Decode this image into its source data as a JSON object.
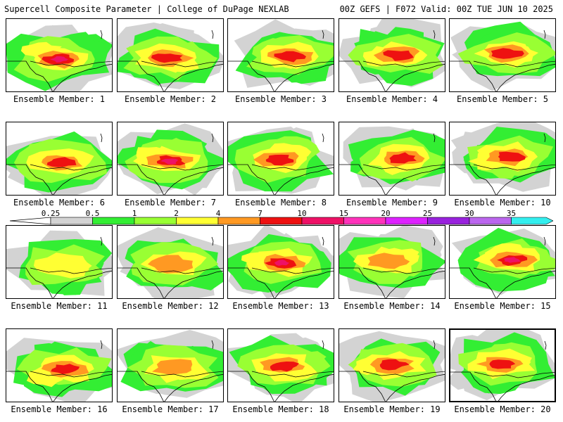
{
  "header": {
    "title": "Supercell Composite Parameter | College of DuPage NEXLAB",
    "valid": "00Z GEFS | F072 Valid: 00Z TUE JUN 10 2025"
  },
  "colorbar": {
    "ticks": [
      "0.25",
      "0.5",
      "1",
      "2",
      "4",
      "7",
      "10",
      "15",
      "20",
      "25",
      "30",
      "35"
    ],
    "colors": [
      "#d3d3d3",
      "#33ee33",
      "#99ff33",
      "#ffff33",
      "#ff9922",
      "#ee1111",
      "#ee1166",
      "#ff33bb",
      "#dd22ff",
      "#9922dd",
      "#bb66ee",
      "#33eeee"
    ]
  },
  "members": [
    {
      "label": "Ensemble Member: 1",
      "intensity": 5
    },
    {
      "label": "Ensemble Member: 2",
      "intensity": 4
    },
    {
      "label": "Ensemble Member: 3",
      "intensity": 4
    },
    {
      "label": "Ensemble Member: 4",
      "intensity": 4
    },
    {
      "label": "Ensemble Member: 5",
      "intensity": 4
    },
    {
      "label": "Ensemble Member: 6",
      "intensity": 4
    },
    {
      "label": "Ensemble Member: 7",
      "intensity": 5
    },
    {
      "label": "Ensemble Member: 8",
      "intensity": 4
    },
    {
      "label": "Ensemble Member: 9",
      "intensity": 4
    },
    {
      "label": "Ensemble Member: 10",
      "intensity": 4
    },
    {
      "label": "Ensemble Member: 11",
      "intensity": 2
    },
    {
      "label": "Ensemble Member: 12",
      "intensity": 3
    },
    {
      "label": "Ensemble Member: 13",
      "intensity": 5
    },
    {
      "label": "Ensemble Member: 14",
      "intensity": 3
    },
    {
      "label": "Ensemble Member: 15",
      "intensity": 5
    },
    {
      "label": "Ensemble Member: 16",
      "intensity": 4
    },
    {
      "label": "Ensemble Member: 17",
      "intensity": 3
    },
    {
      "label": "Ensemble Member: 18",
      "intensity": 4
    },
    {
      "label": "Ensemble Member: 19",
      "intensity": 4
    },
    {
      "label": "Ensemble Member: 20",
      "intensity": 4,
      "selected": true
    }
  ]
}
